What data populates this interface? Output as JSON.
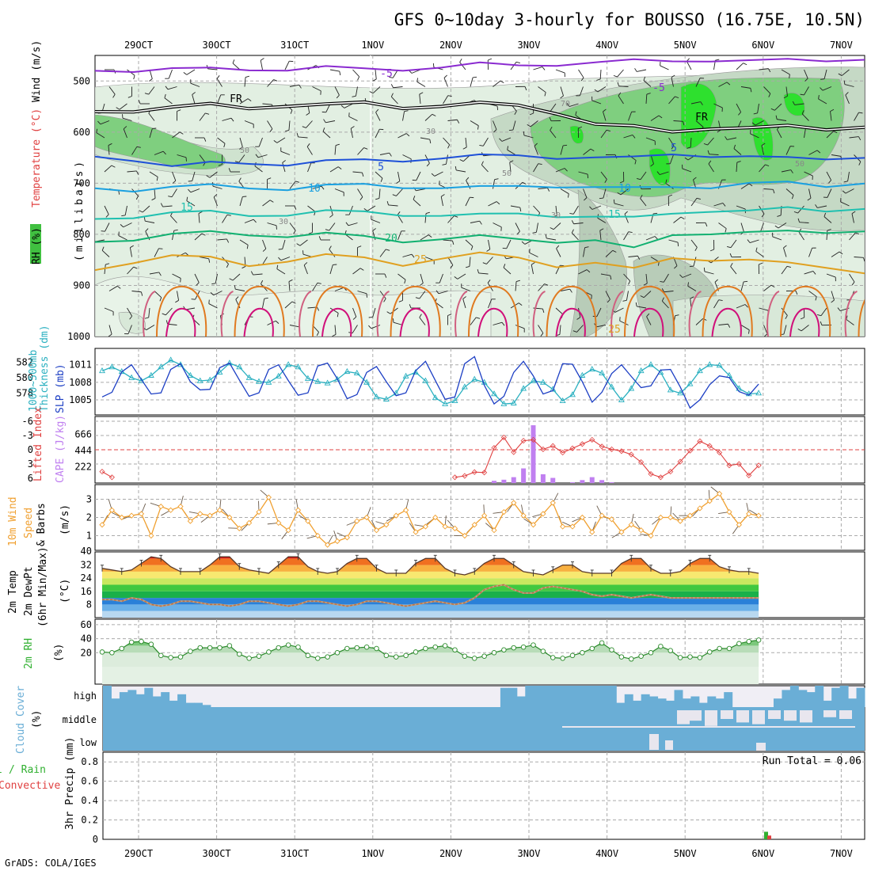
{
  "title": "GFS 0~10day 3-hourly for BOUSSO (16.75E, 10.5N)",
  "credit": "GrADS: COLA/IGES",
  "dates": [
    "29OCT",
    "30OCT",
    "31OCT",
    "1NOV",
    "2NOV",
    "3NOV",
    "4NOV",
    "5NOV",
    "6NOV",
    "7NOV"
  ],
  "colors": {
    "cape": "#c080f0",
    "lifted_index": "#e04040",
    "slp": "#1d3fc4",
    "thickness": "#2ab0c0",
    "wind": "#f0a030",
    "dewpoint": "#c07040",
    "rh2m": "#30b030",
    "cloud": "#6aaed6",
    "rain_total": "#30b030",
    "rain_conv": "#e04040"
  },
  "chart_data": [
    {
      "type": "heatmap",
      "name": "upper-air",
      "ylabel": "(millibars)",
      "ylabel_parts": [
        "Temperature",
        "(°C)",
        "Wind",
        "(m/s)"
      ],
      "rh_legend": "RH (%)",
      "ylim": [
        1000,
        450
      ],
      "yticks": [
        "500",
        "600",
        "700",
        "800",
        "900",
        "1000"
      ],
      "contour_labels": [
        "-5",
        "-5",
        "FR",
        "FR",
        "5",
        "5",
        "10",
        "10",
        "15",
        "15",
        "20",
        "25",
        "25",
        "30",
        "30",
        "30",
        "50",
        "50",
        "50",
        "70"
      ],
      "isotherms": [
        {
          "name": "-5",
          "color": "#8a2ad0",
          "pressure": [
            480,
            478,
            476,
            478,
            477,
            476,
            474,
            478,
            476,
            472,
            468,
            470,
            466,
            464,
            462,
            460,
            458,
            462,
            460,
            458,
            456
          ]
        },
        {
          "name": "FR",
          "color": "#000000",
          "pressure": [
            560,
            556,
            552,
            548,
            552,
            546,
            548,
            544,
            550,
            548,
            546,
            548,
            560,
            585,
            592,
            598,
            590,
            594,
            590,
            592,
            588
          ]
        },
        {
          "name": "5",
          "color": "#1e50d8",
          "pressure": [
            648,
            652,
            668,
            662,
            660,
            662,
            658,
            656,
            654,
            650,
            648,
            646,
            648,
            650,
            652,
            642,
            645,
            650,
            652,
            650,
            648
          ]
        },
        {
          "name": "10",
          "color": "#1aa0e0",
          "pressure": [
            710,
            712,
            708,
            706,
            708,
            710,
            706,
            704,
            706,
            708,
            710,
            706,
            704,
            708,
            712,
            706,
            706,
            702,
            700,
            704,
            698
          ]
        },
        {
          "name": "15",
          "color": "#20c0b0",
          "pressure": [
            770,
            764,
            758,
            758,
            762,
            760,
            756,
            758,
            760,
            762,
            764,
            760,
            762,
            766,
            770,
            758,
            752,
            756,
            750,
            752,
            748
          ]
        },
        {
          "name": "20",
          "color": "#10b070",
          "pressure": [
            815,
            808,
            800,
            798,
            800,
            802,
            800,
            806,
            812,
            808,
            806,
            810,
            812,
            812,
            830,
            800,
            796,
            798,
            796,
            794,
            792
          ]
        },
        {
          "name": "25",
          "color": "#e0a020",
          "pressure": [
            870,
            852,
            842,
            848,
            860,
            850,
            842,
            848,
            858,
            846,
            840,
            846,
            860,
            856,
            870,
            845,
            848,
            852,
            858,
            862,
            874
          ]
        }
      ]
    },
    {
      "type": "line",
      "name": "slp-thickness",
      "ylabel_left": "Thickness (dm)",
      "ylabel_left_prefix": "1000~500mb",
      "ylabel_right": "SLP (mb)",
      "slp_ticks": [
        1005,
        1008,
        1011
      ],
      "thickness_ticks": [
        578,
        580,
        582
      ],
      "series": [
        {
          "name": "SLP",
          "values": [
            1005.5,
            1006.3,
            1009.8,
            1011.0,
            1008.5,
            1006.0,
            1006.2,
            1010.2,
            1011.2,
            1008.1,
            1006.7,
            1006.8,
            1010.5,
            1011.3,
            1008.4,
            1005.6,
            1006.2,
            1010.2,
            1011.0,
            1008.3,
            1005.8,
            1006.2,
            1010.8,
            1011.3,
            1008.6,
            1005.2,
            1005.9,
            1009.7,
            1010.7,
            1008.1,
            1005.7,
            1006.2,
            1010.0,
            1011.6,
            1008.3,
            1005.1,
            1005.5,
            1011.2,
            1012.4,
            1007.5,
            1004.3,
            1005.6,
            1009.7,
            1011.6,
            1009.1,
            1006.0,
            1006.6,
            1011.2,
            1011.1,
            1008.1,
            1004.6,
            1006.3,
            1009.5,
            1011.0,
            1009.0,
            1007.1,
            1007.4,
            1010.1,
            1010.2,
            1007.2,
            1003.6,
            1005.0,
            1007.6,
            1009.1,
            1008.8,
            1006.4,
            1005.8,
            1007.7
          ]
        },
        {
          "name": "Thickness",
          "values": [
            580.9,
            581.4,
            580.8,
            580.0,
            579.6,
            580.3,
            581.4,
            582.3,
            581.7,
            580.3,
            579.6,
            579.7,
            580.7,
            581.9,
            581.4,
            580.0,
            579.5,
            579.4,
            580.2,
            581.7,
            581.4,
            579.9,
            579.5,
            579.3,
            579.8,
            580.8,
            580.6,
            579.4,
            577.5,
            577.2,
            578.0,
            580.2,
            580.7,
            579.6,
            577.4,
            576.6,
            577.0,
            578.8,
            579.8,
            579.4,
            577.9,
            576.6,
            576.7,
            578.6,
            579.6,
            579.4,
            578.5,
            577.0,
            577.8,
            580.3,
            581.1,
            580.6,
            578.8,
            577.1,
            578.6,
            580.9,
            581.7,
            580.7,
            578.4,
            578.0,
            579.2,
            580.9,
            581.7,
            581.6,
            580.3,
            578.6,
            577.9,
            578.0
          ]
        }
      ]
    },
    {
      "type": "bar",
      "name": "cape-lifted-index",
      "ylabel_left": "Lifted Index",
      "ylabel_right": "CAPE (J/kg)",
      "li_ticks": [
        -6,
        -3,
        0,
        3,
        6
      ],
      "cape_ticks": [
        222,
        444,
        666
      ],
      "series": [
        {
          "name": "CAPE",
          "values": [
            0,
            0,
            0,
            0,
            0,
            0,
            0,
            0,
            0,
            0,
            0,
            0,
            0,
            0,
            0,
            0,
            0,
            0,
            0,
            0,
            0,
            0,
            0,
            0,
            0,
            0,
            0,
            0,
            0,
            0,
            0,
            0,
            0,
            0,
            0,
            0,
            0,
            0,
            0,
            0,
            30,
            45,
            80,
            200,
            790,
            120,
            70,
            0,
            10,
            40,
            80,
            40,
            10,
            0,
            0,
            0,
            0,
            0,
            0,
            0,
            0,
            0,
            0,
            0,
            0,
            0,
            0,
            0
          ]
        },
        {
          "name": "Lifted Index",
          "values": [
            4.6,
            5.8,
            null,
            null,
            null,
            null,
            null,
            null,
            null,
            null,
            null,
            null,
            null,
            null,
            null,
            null,
            null,
            null,
            null,
            null,
            null,
            null,
            null,
            null,
            null,
            null,
            null,
            null,
            null,
            null,
            null,
            null,
            null,
            null,
            null,
            null,
            5.8,
            5.5,
            4.7,
            4.8,
            -0.4,
            -2.6,
            0.5,
            -1.9,
            -2.1,
            -0.1,
            -0.8,
            0.6,
            -0.3,
            -1.2,
            -2.1,
            -0.7,
            -0.1,
            0.3,
            1.0,
            2.6,
            5.1,
            5.8,
            4.6,
            2.5,
            0.2,
            -1.8,
            -0.8,
            0.6,
            3.3,
            3.0,
            5.4,
            3.3
          ]
        }
      ]
    },
    {
      "type": "line",
      "name": "10m-wind",
      "ylabel": "10m Wind Speed & Barbs (m/s)",
      "ylabel_parts": [
        "10m Wind",
        "Speed",
        "& Barbs",
        "(m/s)"
      ],
      "ylim": [
        0.2,
        3.8
      ],
      "yticks": [
        1,
        2,
        3
      ],
      "series": [
        {
          "name": "Speed",
          "values": [
            1.6,
            2.4,
            2.0,
            2.1,
            2.2,
            1.0,
            2.6,
            2.4,
            2.6,
            1.8,
            2.2,
            2.1,
            2.4,
            2.0,
            1.4,
            1.7,
            2.3,
            3.1,
            1.7,
            1.3,
            2.4,
            1.8,
            1.0,
            0.5,
            0.7,
            0.9,
            1.8,
            2.0,
            1.3,
            1.6,
            2.1,
            2.4,
            1.2,
            1.5,
            2.0,
            1.5,
            1.4,
            1.0,
            1.6,
            2.1,
            1.3,
            2.3,
            2.8,
            2.1,
            1.6,
            2.2,
            2.8,
            1.5,
            1.5,
            2.0,
            1.2,
            2.1,
            1.9,
            1.2,
            1.6,
            1.3,
            1.0,
            2.0,
            2.0,
            1.8,
            2.1,
            2.5,
            2.9,
            3.3,
            2.3,
            1.6,
            2.2,
            2.1
          ]
        }
      ]
    },
    {
      "type": "area",
      "name": "2m-temperature",
      "ylabel_parts": [
        "2m Temp",
        "2m DewPt",
        "(6hr Min/Max)",
        "(°C)"
      ],
      "ylim": [
        0,
        40
      ],
      "yticks": [
        8,
        16,
        24,
        32,
        40
      ],
      "series": [
        {
          "name": "Temp",
          "values": [
            30,
            29,
            28,
            29,
            33,
            37,
            36,
            31,
            28,
            28,
            28,
            32,
            37,
            37,
            31,
            29,
            28,
            27,
            32,
            37,
            37,
            31,
            28,
            27,
            28,
            33,
            36,
            36,
            30,
            27,
            27,
            27,
            33,
            36,
            36,
            30,
            27,
            26,
            28,
            33,
            36,
            36,
            32,
            28,
            27,
            26,
            29,
            32,
            32,
            28,
            27,
            27,
            27,
            33,
            36,
            36,
            30,
            27,
            27,
            28,
            33,
            36,
            36,
            31,
            29,
            28,
            28,
            27
          ]
        },
        {
          "name": "DewPt",
          "values": [
            11,
            11,
            10,
            12,
            11,
            8,
            7,
            8,
            10,
            10,
            9,
            8,
            8,
            7,
            8,
            10,
            10,
            9,
            8,
            7,
            8,
            10,
            10,
            9,
            8,
            7,
            8,
            10,
            10,
            9,
            8,
            7,
            8,
            9,
            10,
            9,
            8,
            9,
            12,
            17,
            19,
            20,
            17,
            15,
            15,
            18,
            19,
            18,
            17,
            16,
            14,
            13,
            14,
            13,
            12,
            13,
            14,
            13,
            12,
            12,
            12,
            12,
            12,
            12,
            12,
            12,
            12,
            12
          ]
        }
      ]
    },
    {
      "type": "area",
      "name": "2m-rh",
      "ylabel": "2m RH (%)",
      "ylim": [
        0,
        80
      ],
      "yticks": [
        20,
        40,
        60
      ],
      "series": [
        {
          "name": "RH",
          "values": [
            21,
            20,
            26,
            35,
            36,
            32,
            16,
            13,
            14,
            22,
            27,
            27,
            27,
            30,
            18,
            12,
            15,
            21,
            27,
            31,
            28,
            16,
            12,
            14,
            20,
            26,
            27,
            28,
            26,
            16,
            14,
            16,
            21,
            26,
            28,
            30,
            24,
            15,
            12,
            15,
            20,
            24,
            27,
            28,
            31,
            22,
            13,
            12,
            16,
            20,
            26,
            34,
            24,
            14,
            11,
            15,
            20,
            29,
            23,
            13,
            14,
            13,
            21,
            26,
            26,
            33,
            36,
            38
          ]
        }
      ]
    },
    {
      "type": "bar",
      "name": "cloud-cover",
      "ylabel": "Cloud Cover (%)",
      "levels": [
        "high",
        "middle",
        "low"
      ]
    },
    {
      "type": "bar",
      "name": "precipitation",
      "ylabel_parts": [
        "Total / Rain",
        "Convective"
      ],
      "ylabel": "3hr Precip (mm)",
      "ylim": [
        0,
        0.9
      ],
      "yticks": [
        "0",
        "0.2",
        "0.4",
        "0.6",
        "0.8"
      ],
      "run_total": "Run Total = 0.06",
      "series": [
        {
          "name": "Total",
          "day_offset": 8.0,
          "value": 0.06
        },
        {
          "name": "Convective",
          "day_offset": 8.0,
          "value": 0.03
        }
      ]
    }
  ]
}
